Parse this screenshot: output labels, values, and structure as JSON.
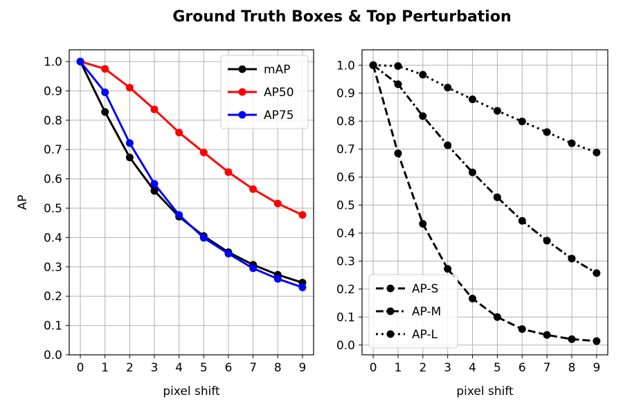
{
  "figure": {
    "title": "Ground Truth Boxes  &  Top Perturbation"
  },
  "chart_data": [
    {
      "type": "line",
      "title": "",
      "xlabel": "pixel shift",
      "ylabel": "AP",
      "x": [
        0,
        1,
        2,
        3,
        4,
        5,
        6,
        7,
        8,
        9
      ],
      "xlim": [
        -0.45,
        9.45
      ],
      "ylim": [
        0.0,
        1.04
      ],
      "xticks": [
        "0",
        "1",
        "2",
        "3",
        "4",
        "5",
        "6",
        "7",
        "8",
        "9"
      ],
      "yticks": [
        0.0,
        0.1,
        0.2,
        0.3,
        0.4,
        0.5,
        0.6,
        0.7,
        0.8,
        0.9,
        1.0
      ],
      "ytick_labels": [
        "0.0",
        "0.1",
        "0.2",
        "0.3",
        "0.4",
        "0.5",
        "0.6",
        "0.7",
        "0.8",
        "0.9",
        "1.0"
      ],
      "grid": true,
      "legend_position": "top-right",
      "series": [
        {
          "name": "mAP",
          "color": "#000000",
          "linestyle": "solid",
          "values": [
            1.0,
            0.828,
            0.673,
            0.559,
            0.471,
            0.405,
            0.35,
            0.307,
            0.273,
            0.246
          ]
        },
        {
          "name": "AP50",
          "color": "#ff0000",
          "linestyle": "solid",
          "values": [
            1.0,
            0.975,
            0.911,
            0.837,
            0.758,
            0.69,
            0.623,
            0.565,
            0.516,
            0.477
          ]
        },
        {
          "name": "AP75",
          "color": "#0000ff",
          "linestyle": "solid",
          "values": [
            1.0,
            0.895,
            0.722,
            0.583,
            0.477,
            0.399,
            0.345,
            0.295,
            0.259,
            0.23
          ]
        }
      ]
    },
    {
      "type": "line",
      "title": "",
      "xlabel": "pixel shift",
      "ylabel": "",
      "x": [
        0,
        1,
        2,
        3,
        4,
        5,
        6,
        7,
        8,
        9
      ],
      "xlim": [
        -0.45,
        9.45
      ],
      "ylim": [
        -0.035,
        1.055
      ],
      "xticks": [
        "0",
        "1",
        "2",
        "3",
        "4",
        "5",
        "6",
        "7",
        "8",
        "9"
      ],
      "yticks": [
        0.0,
        0.1,
        0.2,
        0.3,
        0.4,
        0.5,
        0.6,
        0.7,
        0.8,
        0.9,
        1.0
      ],
      "ytick_labels": [
        "0.0",
        "0.1",
        "0.2",
        "0.3",
        "0.4",
        "0.5",
        "0.6",
        "0.7",
        "0.8",
        "0.9",
        "1.0"
      ],
      "grid": true,
      "legend_position": "bottom-left",
      "series": [
        {
          "name": "AP-S",
          "color": "#000000",
          "linestyle": "dashed",
          "values": [
            1.0,
            0.685,
            0.433,
            0.272,
            0.166,
            0.1,
            0.057,
            0.036,
            0.021,
            0.014
          ]
        },
        {
          "name": "AP-M",
          "color": "#000000",
          "linestyle": "dashdot",
          "values": [
            1.0,
            0.932,
            0.818,
            0.714,
            0.617,
            0.528,
            0.444,
            0.373,
            0.309,
            0.257
          ]
        },
        {
          "name": "AP-L",
          "color": "#000000",
          "linestyle": "dotted",
          "values": [
            1.0,
            0.997,
            0.966,
            0.92,
            0.878,
            0.837,
            0.799,
            0.761,
            0.721,
            0.688
          ]
        }
      ]
    }
  ]
}
